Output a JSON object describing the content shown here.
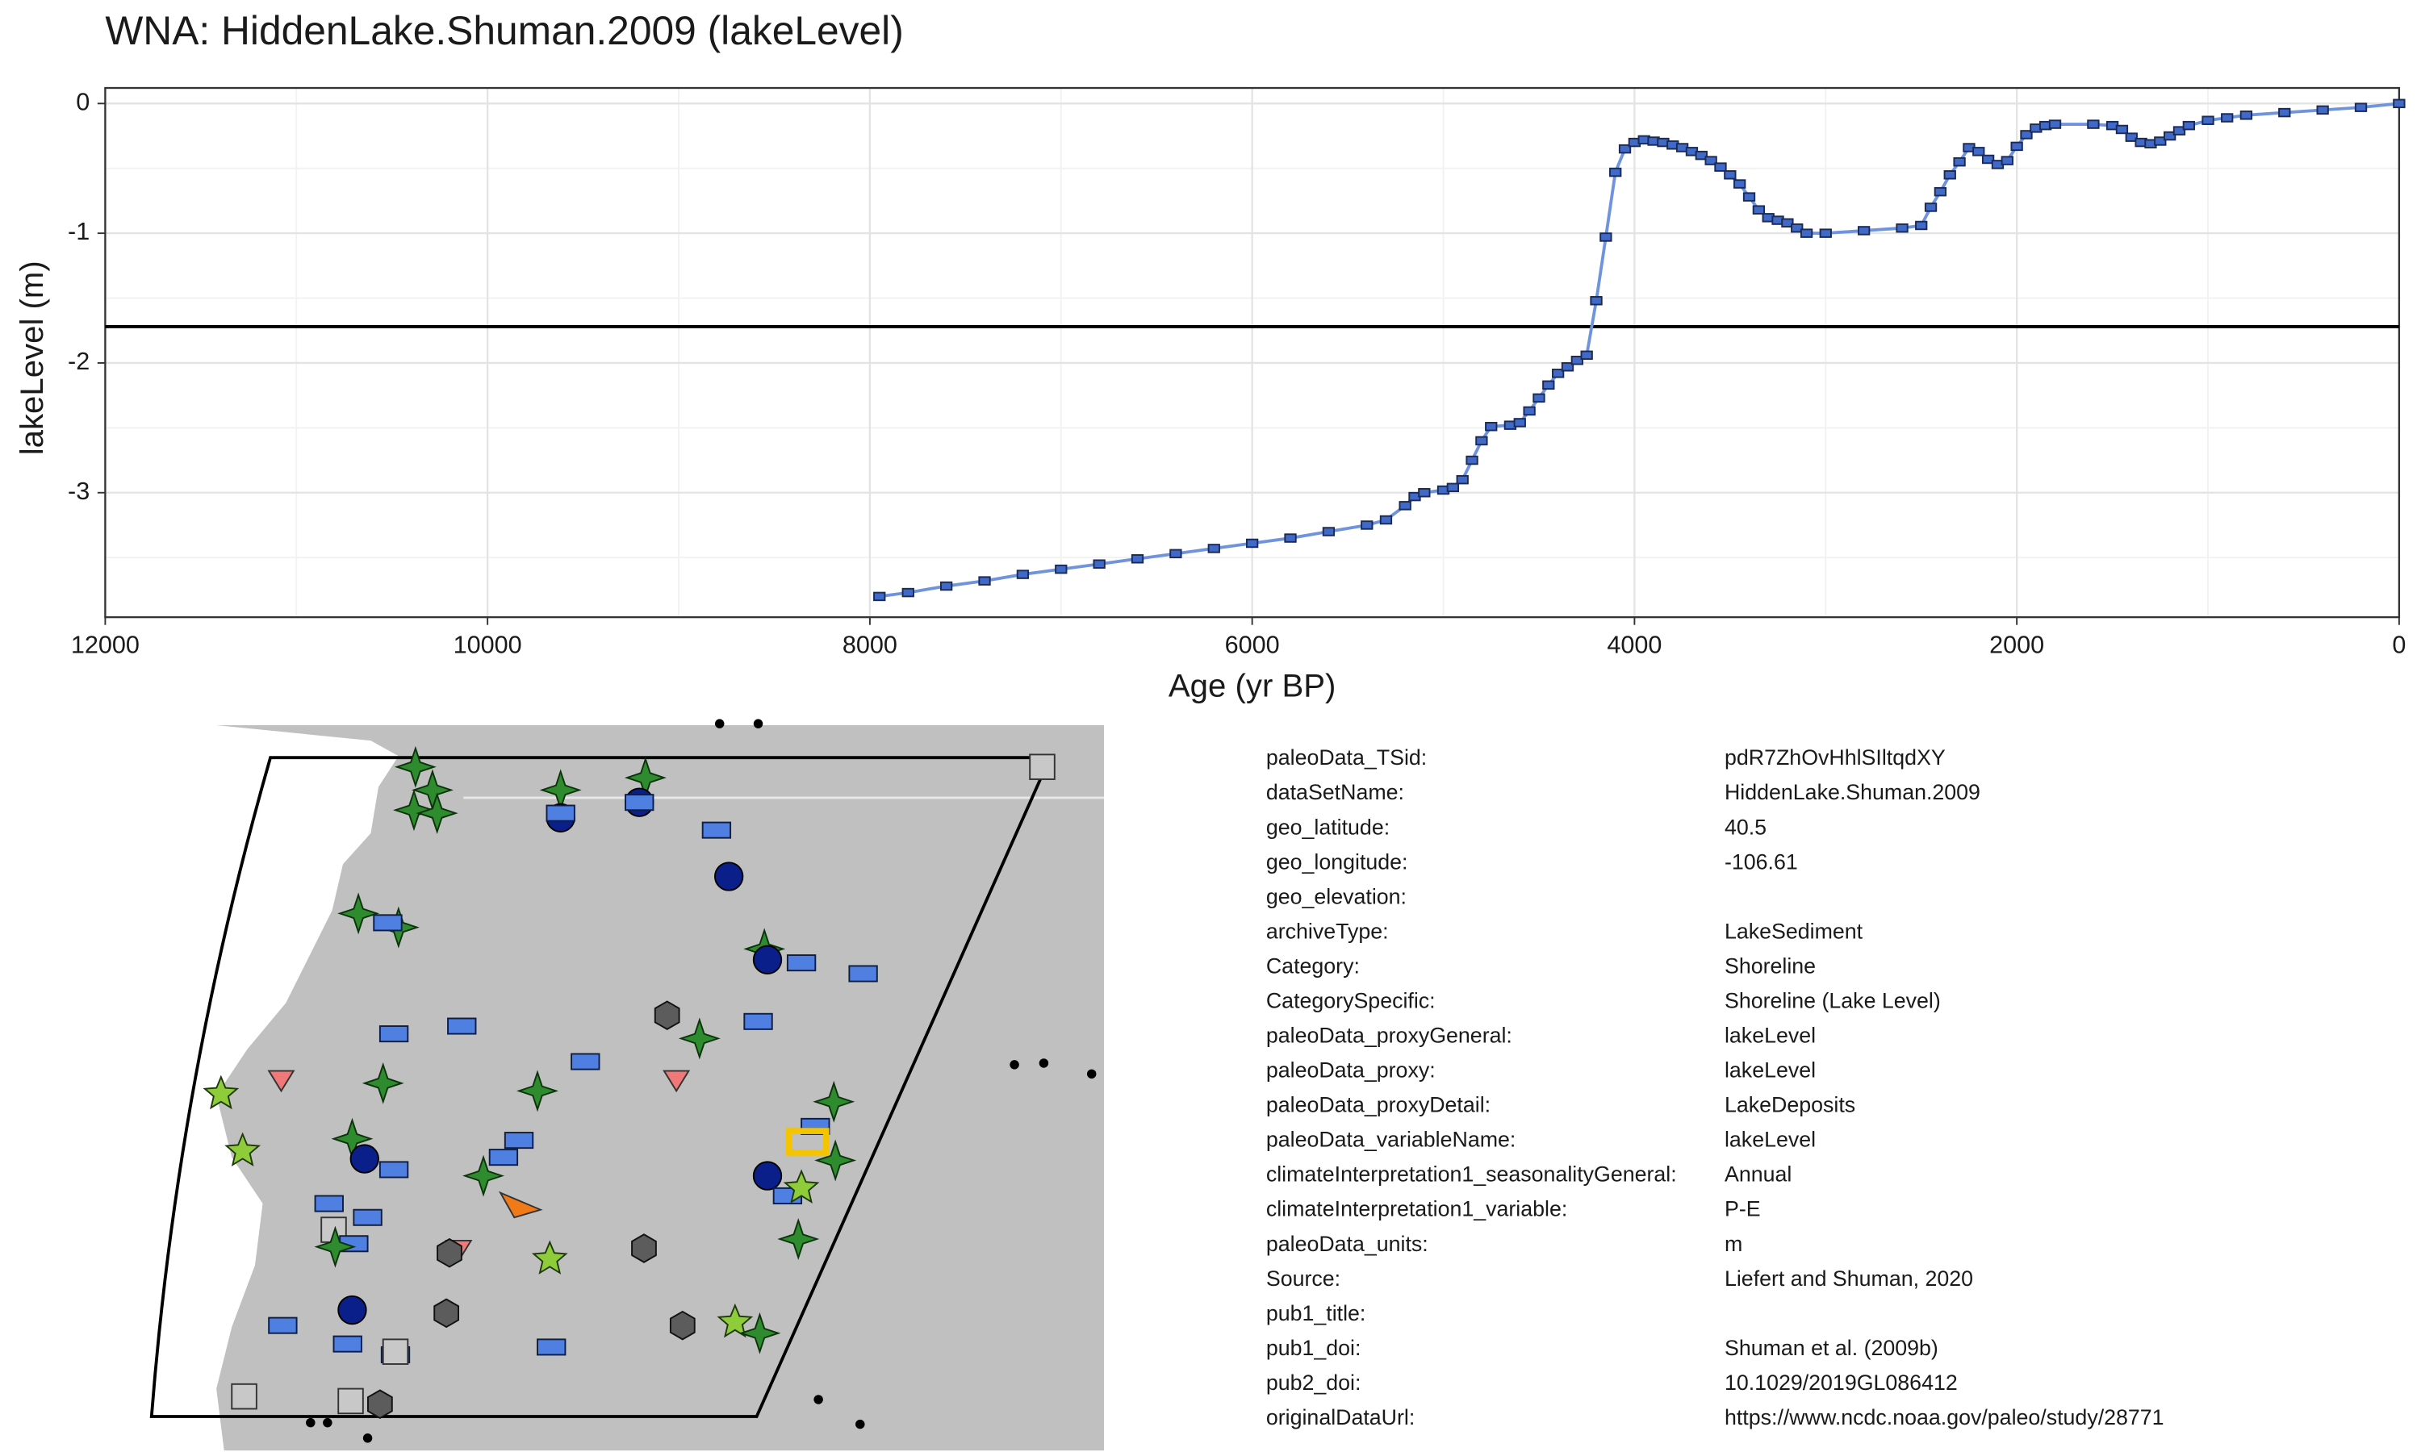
{
  "chart_data": {
    "type": "line",
    "title": "WNA: HiddenLake.Shuman.2009 (lakeLevel)",
    "x_label": "Age (yr BP)",
    "y_label": "lakeLevel (m)",
    "x": [
      7950,
      7800,
      7600,
      7400,
      7200,
      7000,
      6800,
      6600,
      6400,
      6200,
      6000,
      5800,
      5600,
      5400,
      5300,
      5200,
      5150,
      5100,
      5000,
      4950,
      4900,
      4850,
      4800,
      4750,
      4650,
      4600,
      4550,
      4500,
      4450,
      4400,
      4350,
      4300,
      4250,
      4200,
      4150,
      4100,
      4050,
      4000,
      3950,
      3900,
      3850,
      3800,
      3750,
      3700,
      3650,
      3600,
      3550,
      3500,
      3450,
      3400,
      3350,
      3300,
      3250,
      3200,
      3150,
      3100,
      3000,
      2800,
      2600,
      2500,
      2450,
      2400,
      2350,
      2300,
      2250,
      2200,
      2150,
      2100,
      2050,
      2000,
      1950,
      1900,
      1850,
      1800,
      1600,
      1500,
      1450,
      1400,
      1350,
      1300,
      1250,
      1200,
      1150,
      1100,
      1000,
      900,
      800,
      600,
      400,
      200,
      0
    ],
    "series": [
      {
        "name": "lakeLevel",
        "color": "#6f93dd",
        "marker_color": "#4169c8",
        "values": [
          -3.8,
          -3.77,
          -3.72,
          -3.68,
          -3.63,
          -3.59,
          -3.55,
          -3.51,
          -3.47,
          -3.43,
          -3.39,
          -3.35,
          -3.3,
          -3.25,
          -3.21,
          -3.1,
          -3.03,
          -3.0,
          -2.98,
          -2.96,
          -2.9,
          -2.75,
          -2.6,
          -2.49,
          -2.48,
          -2.46,
          -2.37,
          -2.27,
          -2.17,
          -2.08,
          -2.03,
          -1.98,
          -1.94,
          -1.52,
          -1.03,
          -0.53,
          -0.35,
          -0.3,
          -0.28,
          -0.29,
          -0.3,
          -0.32,
          -0.34,
          -0.37,
          -0.4,
          -0.44,
          -0.49,
          -0.55,
          -0.62,
          -0.72,
          -0.82,
          -0.88,
          -0.9,
          -0.92,
          -0.96,
          -1.0,
          -1.0,
          -0.98,
          -0.96,
          -0.94,
          -0.8,
          -0.68,
          -0.55,
          -0.45,
          -0.34,
          -0.37,
          -0.43,
          -0.47,
          -0.44,
          -0.33,
          -0.24,
          -0.19,
          -0.17,
          -0.16,
          -0.16,
          -0.17,
          -0.2,
          -0.26,
          -0.3,
          -0.31,
          -0.29,
          -0.25,
          -0.21,
          -0.17,
          -0.13,
          -0.11,
          -0.09,
          -0.07,
          -0.05,
          -0.03,
          0
        ]
      }
    ],
    "reference_y": -1.72,
    "xlim": [
      12000,
      0
    ],
    "xticks": [
      12000,
      10000,
      8000,
      6000,
      4000,
      2000,
      0
    ],
    "ylim": [
      -3.96,
      0.12
    ],
    "yticks": [
      0,
      -1,
      -2,
      -3
    ],
    "grid": true
  },
  "metadata": [
    [
      "paleoData_TSid:",
      "pdR7ZhOvHhlSIltqdXY"
    ],
    [
      "dataSetName:",
      "HiddenLake.Shuman.2009"
    ],
    [
      "geo_latitude:",
      "40.5"
    ],
    [
      "geo_longitude:",
      "-106.61"
    ],
    [
      "geo_elevation:"
    ],
    [
      "archiveType:",
      "LakeSediment"
    ],
    [
      "Category:",
      "Shoreline"
    ],
    [
      "CategorySpecific:",
      "Shoreline (Lake Level)"
    ],
    [
      "paleoData_proxyGeneral:",
      "lakeLevel"
    ],
    [
      "paleoData_proxy:",
      "lakeLevel"
    ],
    [
      "paleoData_proxyDetail:",
      "LakeDeposits"
    ],
    [
      "paleoData_variableName:",
      "lakeLevel"
    ],
    [
      "climateInterpretation1_seasonalityGeneral:",
      "Annual"
    ],
    [
      "climateInterpretation1_variable:",
      "P-E"
    ],
    [
      "paleoData_units:",
      "m"
    ],
    [
      "Source:",
      "Liefert and Shuman, 2020"
    ],
    [
      "pub1_title:"
    ],
    [
      "pub1_doi:",
      "Shuman et al. (2009b)"
    ],
    [
      "pub2_doi:",
      "10.1029/2019GL086412"
    ],
    [
      "originalDataUrl:",
      "https://www.ncdc.noaa.gov/paleo/study/28771"
    ]
  ]
}
